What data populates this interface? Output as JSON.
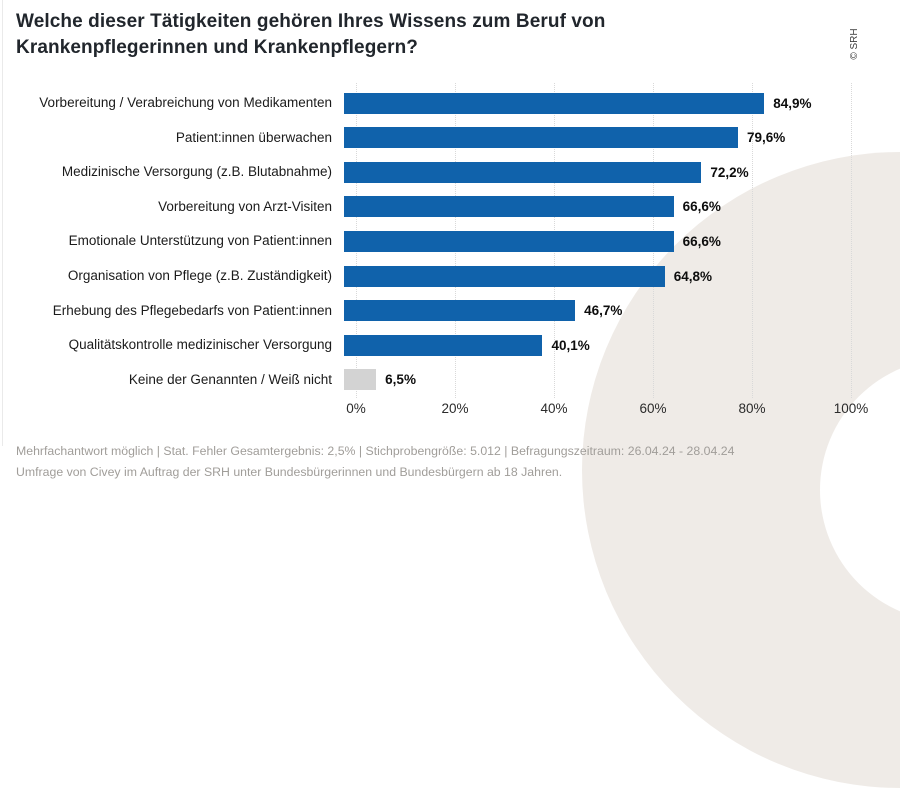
{
  "title": "Welche dieser Tätigkeiten gehören Ihres Wissens zum Beruf von Krankenpflegerinnen und Krankenpflegern?",
  "watermark": "© SRH",
  "chart_data": {
    "type": "bar",
    "orientation": "horizontal",
    "title": "Welche dieser Tätigkeiten gehören Ihres Wissens zum Beruf von Krankenpflegerinnen und Krankenpflegern?",
    "categories": [
      "Vorbereitung / Verabreichung von Medikamenten",
      "Patient:innen überwachen",
      "Medizinische Versorgung (z.B. Blutabnahme)",
      "Vorbereitung von Arzt-Visiten",
      "Emotionale Unterstützung von Patient:innen",
      "Organisation von Pflege (z.B. Zuständigkeit)",
      "Erhebung des Pflegebedarfs von Patient:innen",
      "Qualitätskontrolle medizinischer Versorgung",
      "Keine der Genannten / Weiß nicht"
    ],
    "values": [
      84.9,
      79.6,
      72.2,
      66.6,
      66.6,
      64.8,
      46.7,
      40.1,
      6.5
    ],
    "value_labels": [
      "84,9%",
      "79,6%",
      "72,2%",
      "66,6%",
      "66,6%",
      "64,8%",
      "46,7%",
      "40,1%",
      "6,5%"
    ],
    "xlim": [
      0,
      100
    ],
    "x_ticks": [
      "0%",
      "20%",
      "40%",
      "60%",
      "80%",
      "100%"
    ],
    "x_tick_values": [
      0,
      20,
      40,
      60,
      80,
      100
    ],
    "grid": "vertical-dotted",
    "legend": "none",
    "bar_color": "#1062ab",
    "muted_bar_color": "#d3d3d3",
    "muted_bar_index": 8
  },
  "footer": {
    "line1": "Mehrfachantwort möglich | Stat. Fehler Gesamtergebnis: 2,5% | Stichprobengröße: 5.012 | Befragungszeitraum: 26.04.24 - 28.04.24",
    "line2": "Umfrage von Civey im Auftrag der SRH unter Bundesbürgerinnen und Bundesbürgern ab 18 Jahren."
  },
  "colors": {
    "background": "#ffffff",
    "decor_circle": "#efebe7",
    "title_text": "#21262c",
    "footer_text": "#a09d99",
    "gridline": "#d9d9d9"
  }
}
